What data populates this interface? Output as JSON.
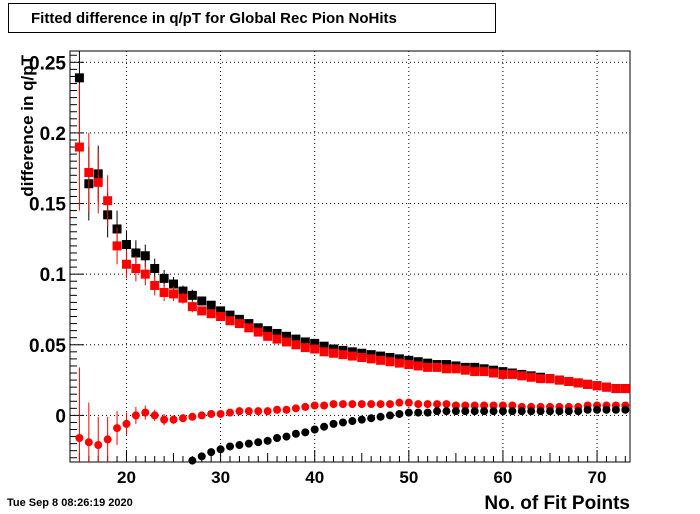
{
  "title": "Fitted difference in q/pT for Global Rec Pion NoHits",
  "timestamp": "Tue Sep  8 08:26:19 2020",
  "chart_data": {
    "type": "scatter",
    "title": "Fitted difference in q/pT for Global Rec Pion NoHits",
    "xlabel": "No. of Fit Points",
    "ylabel": "difference in q/pT",
    "xlim": [
      14,
      73.5
    ],
    "ylim": [
      -0.033,
      0.258
    ],
    "xticks": [
      20,
      30,
      40,
      50,
      60,
      70
    ],
    "yticks": [
      0,
      0.05,
      0.1,
      0.15,
      0.2,
      0.25
    ],
    "ytick_labels": [
      "0",
      "0.05",
      "0.1",
      "0.15",
      "0.2",
      "0.25"
    ],
    "grid": true,
    "series": [
      {
        "marker": "square",
        "color": "#000000",
        "x": [
          15,
          16,
          17,
          18,
          19,
          20,
          21,
          22,
          23,
          24,
          25,
          26,
          27,
          28,
          29,
          30,
          31,
          32,
          33,
          34,
          35,
          36,
          37,
          38,
          39,
          40,
          41,
          42,
          43,
          44,
          45,
          46,
          47,
          48,
          49,
          50,
          51,
          52,
          53,
          54,
          55,
          56,
          57,
          58,
          59,
          60,
          61,
          62,
          63,
          64,
          65,
          66,
          67,
          68,
          69,
          70,
          71,
          72,
          73
        ],
        "y": [
          0.239,
          0.164,
          0.171,
          0.142,
          0.132,
          0.121,
          0.115,
          0.113,
          0.104,
          0.097,
          0.093,
          0.088,
          0.085,
          0.081,
          0.078,
          0.074,
          0.071,
          0.068,
          0.065,
          0.062,
          0.06,
          0.058,
          0.056,
          0.054,
          0.052,
          0.051,
          0.049,
          0.047,
          0.046,
          0.045,
          0.044,
          0.043,
          0.042,
          0.041,
          0.04,
          0.039,
          0.038,
          0.037,
          0.036,
          0.036,
          0.035,
          0.034,
          0.034,
          0.033,
          0.032,
          0.031,
          0.03,
          0.029,
          0.028,
          0.027,
          0.026,
          0.025,
          0.024,
          0.023,
          0.022,
          0.021,
          0.02,
          0.019,
          0.019
        ],
        "err": [
          0.05,
          0.026,
          0.02,
          0.016,
          0.013,
          0.01,
          0.009,
          0.008,
          0.007,
          0.006,
          0.005,
          0.004,
          0.004,
          0.003,
          0.003,
          0.002,
          0.002,
          0.002,
          0.002,
          0.002,
          0.002,
          0.002,
          0.002,
          0.002,
          0.002,
          0.002,
          0.002,
          0.002,
          0.002,
          0.002,
          0.002,
          0.002,
          0.002,
          0.002,
          0.002,
          0.002,
          0.002,
          0.002,
          0.002,
          0.002,
          0.002,
          0.002,
          0.002,
          0.002,
          0.002,
          0.002,
          0.002,
          0.002,
          0.002,
          0.002,
          0.002,
          0.002,
          0.002,
          0.002,
          0.002,
          0.002,
          0.002,
          0.002,
          0.002
        ]
      },
      {
        "marker": "square",
        "color": "#ff0000",
        "x": [
          15,
          16,
          17,
          18,
          19,
          20,
          21,
          22,
          23,
          24,
          25,
          26,
          27,
          28,
          29,
          30,
          31,
          32,
          33,
          34,
          35,
          36,
          37,
          38,
          39,
          40,
          41,
          42,
          43,
          44,
          45,
          46,
          47,
          48,
          49,
          50,
          51,
          52,
          53,
          54,
          55,
          56,
          57,
          58,
          59,
          60,
          61,
          62,
          63,
          64,
          65,
          66,
          67,
          68,
          69,
          70,
          71,
          72,
          73
        ],
        "y": [
          0.19,
          0.172,
          0.165,
          0.152,
          0.12,
          0.107,
          0.104,
          0.1,
          0.092,
          0.087,
          0.086,
          0.083,
          0.077,
          0.074,
          0.072,
          0.07,
          0.067,
          0.065,
          0.062,
          0.059,
          0.056,
          0.054,
          0.052,
          0.05,
          0.048,
          0.047,
          0.045,
          0.044,
          0.043,
          0.042,
          0.041,
          0.04,
          0.039,
          0.038,
          0.037,
          0.036,
          0.035,
          0.034,
          0.034,
          0.033,
          0.033,
          0.032,
          0.031,
          0.031,
          0.03,
          0.029,
          0.029,
          0.028,
          0.027,
          0.026,
          0.026,
          0.025,
          0.024,
          0.023,
          0.022,
          0.021,
          0.02,
          0.019,
          0.019
        ],
        "err": [
          0.045,
          0.028,
          0.022,
          0.018,
          0.013,
          0.01,
          0.009,
          0.008,
          0.007,
          0.006,
          0.005,
          0.004,
          0.004,
          0.003,
          0.003,
          0.002,
          0.002,
          0.002,
          0.002,
          0.002,
          0.002,
          0.002,
          0.002,
          0.002,
          0.002,
          0.002,
          0.002,
          0.002,
          0.002,
          0.002,
          0.002,
          0.002,
          0.002,
          0.002,
          0.002,
          0.002,
          0.002,
          0.002,
          0.002,
          0.002,
          0.002,
          0.002,
          0.002,
          0.002,
          0.002,
          0.002,
          0.002,
          0.002,
          0.002,
          0.002,
          0.002,
          0.002,
          0.002,
          0.002,
          0.002,
          0.002,
          0.002,
          0.002,
          0.002
        ]
      },
      {
        "marker": "circle",
        "color": "#ff0000",
        "x": [
          15,
          16,
          17,
          18,
          19,
          20,
          21,
          22,
          23,
          24,
          25,
          26,
          27,
          28,
          29,
          30,
          31,
          32,
          33,
          34,
          35,
          36,
          37,
          38,
          39,
          40,
          41,
          42,
          43,
          44,
          45,
          46,
          47,
          48,
          49,
          50,
          51,
          52,
          53,
          54,
          55,
          56,
          57,
          58,
          59,
          60,
          61,
          62,
          63,
          64,
          65,
          66,
          67,
          68,
          69,
          70,
          71,
          72,
          73
        ],
        "y": [
          -0.016,
          -0.019,
          -0.021,
          -0.017,
          -0.009,
          -0.006,
          0.0,
          0.002,
          0.0,
          -0.003,
          -0.003,
          -0.002,
          -0.001,
          0.0,
          0.001,
          0.001,
          0.002,
          0.003,
          0.003,
          0.003,
          0.003,
          0.004,
          0.004,
          0.005,
          0.006,
          0.007,
          0.007,
          0.008,
          0.008,
          0.008,
          0.008,
          0.008,
          0.008,
          0.008,
          0.009,
          0.009,
          0.008,
          0.008,
          0.008,
          0.008,
          0.007,
          0.007,
          0.007,
          0.007,
          0.007,
          0.007,
          0.007,
          0.006,
          0.006,
          0.006,
          0.006,
          0.006,
          0.006,
          0.006,
          0.007,
          0.007,
          0.007,
          0.007,
          0.007
        ],
        "err": [
          0.05,
          0.028,
          0.02,
          0.016,
          0.012,
          0.008,
          0.006,
          0.005,
          0.004,
          0.004,
          0.003,
          0.003,
          0.002,
          0.002,
          0.002,
          0.002,
          0.002,
          0.002,
          0.002,
          0.002,
          0.002,
          0.002,
          0.002,
          0.002,
          0.002,
          0.002,
          0.002,
          0.002,
          0.002,
          0.002,
          0.002,
          0.002,
          0.002,
          0.002,
          0.002,
          0.002,
          0.002,
          0.002,
          0.002,
          0.002,
          0.002,
          0.002,
          0.002,
          0.002,
          0.002,
          0.002,
          0.002,
          0.002,
          0.002,
          0.002,
          0.002,
          0.002,
          0.002,
          0.002,
          0.002,
          0.002,
          0.002,
          0.002,
          0.002
        ]
      },
      {
        "marker": "circle",
        "color": "#000000",
        "x": [
          27,
          28,
          29,
          30,
          31,
          32,
          33,
          34,
          35,
          36,
          37,
          38,
          39,
          40,
          41,
          42,
          43,
          44,
          45,
          46,
          47,
          48,
          49,
          50,
          51,
          52,
          53,
          54,
          55,
          56,
          57,
          58,
          59,
          60,
          61,
          62,
          63,
          64,
          65,
          66,
          67,
          68,
          69,
          70,
          71,
          72,
          73
        ],
        "y": [
          -0.032,
          -0.029,
          -0.026,
          -0.024,
          -0.022,
          -0.021,
          -0.02,
          -0.019,
          -0.018,
          -0.016,
          -0.015,
          -0.013,
          -0.012,
          -0.01,
          -0.008,
          -0.006,
          -0.005,
          -0.004,
          -0.003,
          -0.002,
          -0.001,
          0.0,
          0.001,
          0.002,
          0.002,
          0.002,
          0.003,
          0.003,
          0.003,
          0.003,
          0.003,
          0.003,
          0.003,
          0.003,
          0.003,
          0.003,
          0.003,
          0.003,
          0.003,
          0.003,
          0.003,
          0.003,
          0.004,
          0.004,
          0.004,
          0.004,
          0.004
        ],
        "err": [
          0.002,
          0.002,
          0.002,
          0.002,
          0.002,
          0.002,
          0.002,
          0.002,
          0.002,
          0.002,
          0.002,
          0.002,
          0.002,
          0.002,
          0.002,
          0.002,
          0.002,
          0.002,
          0.002,
          0.002,
          0.002,
          0.002,
          0.002,
          0.002,
          0.002,
          0.002,
          0.002,
          0.002,
          0.002,
          0.002,
          0.002,
          0.002,
          0.002,
          0.002,
          0.002,
          0.002,
          0.002,
          0.002,
          0.002,
          0.002,
          0.002,
          0.002,
          0.002,
          0.002,
          0.002,
          0.002,
          0.002
        ]
      }
    ]
  }
}
